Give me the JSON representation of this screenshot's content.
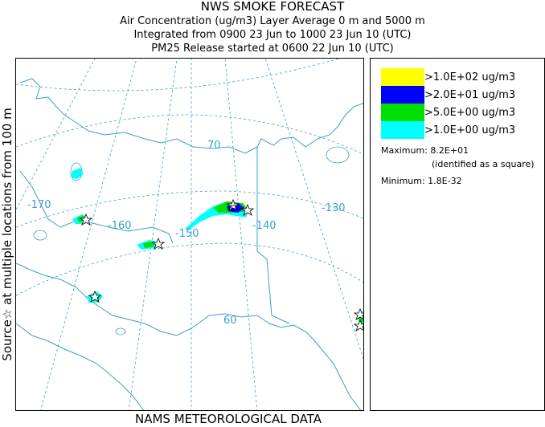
{
  "header": {
    "title": "NWS SMOKE FORECAST",
    "line1": "Air Concentration (ug/m3) Layer Average    0 m and  5000 m",
    "line2": "Integrated from 0900 23 Jun to 1000 23 Jun 10 (UTC)",
    "line3": "PM25 Release started at 0600 22 Jun 10 (UTC)"
  },
  "side_label": "Source☆ at multiple locations  from  100 m",
  "footer": "NAMS METEOROLOGICAL DATA",
  "legend": {
    "items": [
      {
        "label": ">1.0E+02 ug/m3",
        "color": "#ffff00"
      },
      {
        "label": ">2.0E+01 ug/m3",
        "color": "#0000ff"
      },
      {
        "label": ">5.0E+00 ug/m3",
        "color": "#00e000"
      },
      {
        "label": ">1.0E+00 ug/m3",
        "color": "#00ffff"
      }
    ],
    "maximum": "Maximum: 8.2E+01",
    "maximum_note": "(identified as a square)",
    "minimum": "Minimum: 1.8E-32"
  },
  "map": {
    "graticule_labels": {
      "lat70": "70",
      "lat60": "60",
      "lon170": "-170",
      "lon160": "-160",
      "lon150": "-150",
      "lon140": "-140",
      "lon130": "-130"
    },
    "colors": {
      "coast": "#3aa0c8",
      "grid": "#3aa0c8"
    }
  }
}
